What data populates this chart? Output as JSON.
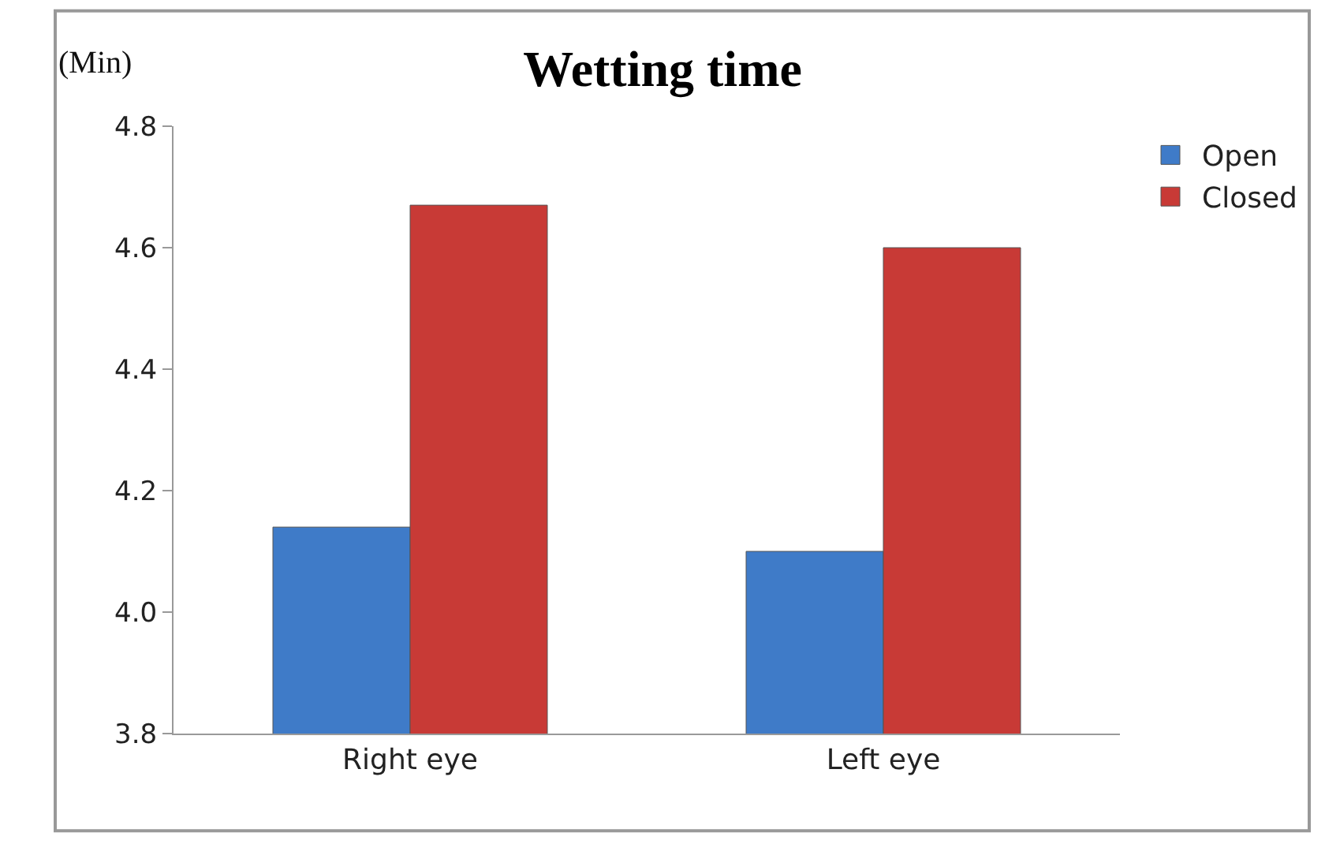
{
  "chart_data": {
    "type": "bar",
    "title": "Wetting time",
    "ylabel": "(Min)",
    "categories": [
      "Right eye",
      "Left eye"
    ],
    "series": [
      {
        "name": "Open",
        "color": "#3f7bc8",
        "values": [
          4.14,
          4.1
        ]
      },
      {
        "name": "Closed",
        "color": "#c83a36",
        "values": [
          4.67,
          4.6
        ]
      }
    ],
    "ylim": [
      3.8,
      4.8
    ],
    "yticks": [
      3.8,
      {
        "value": 4,
        "label": "4.0"
      },
      4.2,
      4.4,
      4.6,
      4.8
    ],
    "grid": false,
    "legend": "top right"
  }
}
